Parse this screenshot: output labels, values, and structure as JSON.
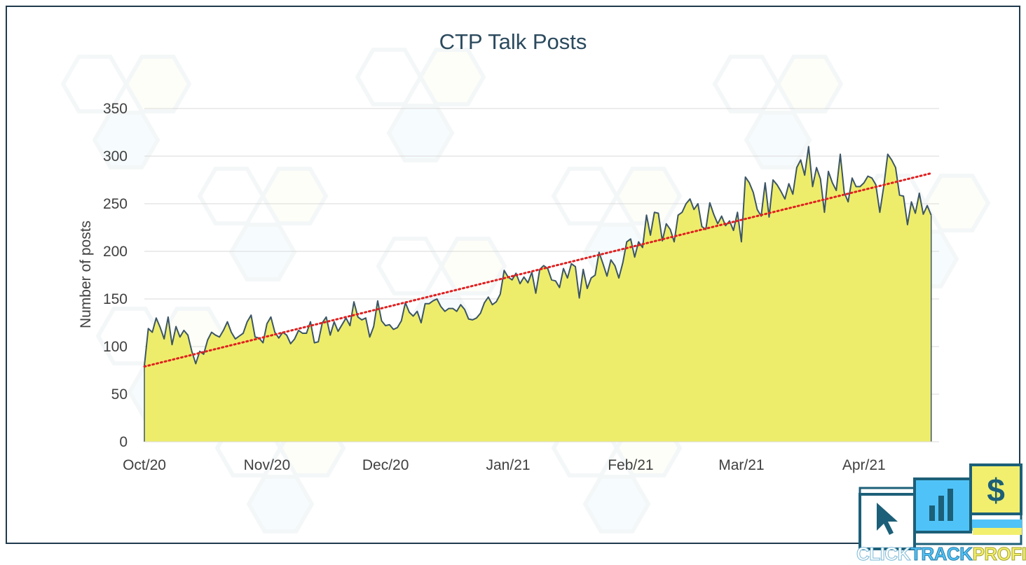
{
  "chart_data": {
    "type": "area",
    "title": "CTP Talk Posts",
    "xlabel": "",
    "ylabel": "Number of posts",
    "ylim": [
      0,
      350
    ],
    "yticks": [
      0,
      50,
      100,
      150,
      200,
      250,
      300,
      350
    ],
    "xlim": [
      "2020-10-01",
      "2021-04-20"
    ],
    "x_tick_labels": [
      {
        "date": "2020-10-01",
        "label": "Oct/20"
      },
      {
        "date": "2020-11-01",
        "label": "Nov/20"
      },
      {
        "date": "2020-12-01",
        "label": "Dec/20"
      },
      {
        "date": "2021-01-01",
        "label": "Jan/21"
      },
      {
        "date": "2021-02-01",
        "label": "Feb/21"
      },
      {
        "date": "2021-03-01",
        "label": "Mar/21"
      },
      {
        "date": "2021-04-01",
        "label": "Apr/21"
      }
    ],
    "grid": true,
    "legend": false,
    "series": [
      {
        "start_date": "2020-10-01",
        "frequency": "daily",
        "style": "area",
        "fill_color": "#eeed6b",
        "line_color": "#3b5566",
        "values": [
          80,
          119,
          115,
          130,
          120,
          108,
          131,
          102,
          121,
          110,
          117,
          112,
          95,
          82,
          95,
          92,
          107,
          115,
          112,
          110,
          117,
          126,
          115,
          108,
          111,
          114,
          126,
          133,
          110,
          109,
          104,
          124,
          131,
          115,
          109,
          115,
          112,
          103,
          108,
          117,
          114,
          114,
          126,
          104,
          105,
          125,
          131,
          112,
          126,
          116,
          123,
          130,
          122,
          147,
          131,
          128,
          130,
          110,
          121,
          148,
          127,
          122,
          123,
          118,
          120,
          127,
          146,
          136,
          132,
          137,
          125,
          145,
          145,
          148,
          150,
          142,
          137,
          140,
          140,
          137,
          144,
          139,
          129,
          128,
          130,
          135,
          146,
          152,
          144,
          147,
          155,
          180,
          173,
          170,
          177,
          166,
          173,
          167,
          178,
          156,
          181,
          185,
          182,
          170,
          169,
          162,
          182,
          172,
          187,
          184,
          151,
          181,
          161,
          172,
          175,
          199,
          187,
          174,
          191,
          185,
          172,
          188,
          210,
          213,
          194,
          210,
          204,
          238,
          217,
          241,
          240,
          211,
          229,
          223,
          210,
          238,
          241,
          250,
          255,
          244,
          250,
          226,
          223,
          251,
          239,
          229,
          237,
          227,
          232,
          222,
          241,
          210,
          278,
          272,
          262,
          244,
          237,
          272,
          236,
          275,
          270,
          263,
          255,
          271,
          260,
          288,
          296,
          280,
          310,
          268,
          288,
          276,
          241,
          284,
          272,
          264,
          302,
          262,
          252,
          277,
          268,
          268,
          272,
          279,
          277,
          270,
          241,
          268,
          302,
          296,
          288,
          259,
          258,
          228,
          252,
          240,
          261,
          239,
          248,
          238
        ]
      },
      {
        "style": "trendline",
        "line_color": "#e02020",
        "trend_start": 79,
        "trend_end": 282
      }
    ]
  },
  "logo": {
    "words": [
      "CLICK",
      "TRACK",
      "PROFIT"
    ],
    "colors": {
      "blue": "#4fc3f7",
      "yellow": "#f2ef6e",
      "dark": "#1c5f78"
    },
    "icons": [
      "cursor-icon",
      "bar-chart-icon",
      "dollar-icon"
    ]
  }
}
